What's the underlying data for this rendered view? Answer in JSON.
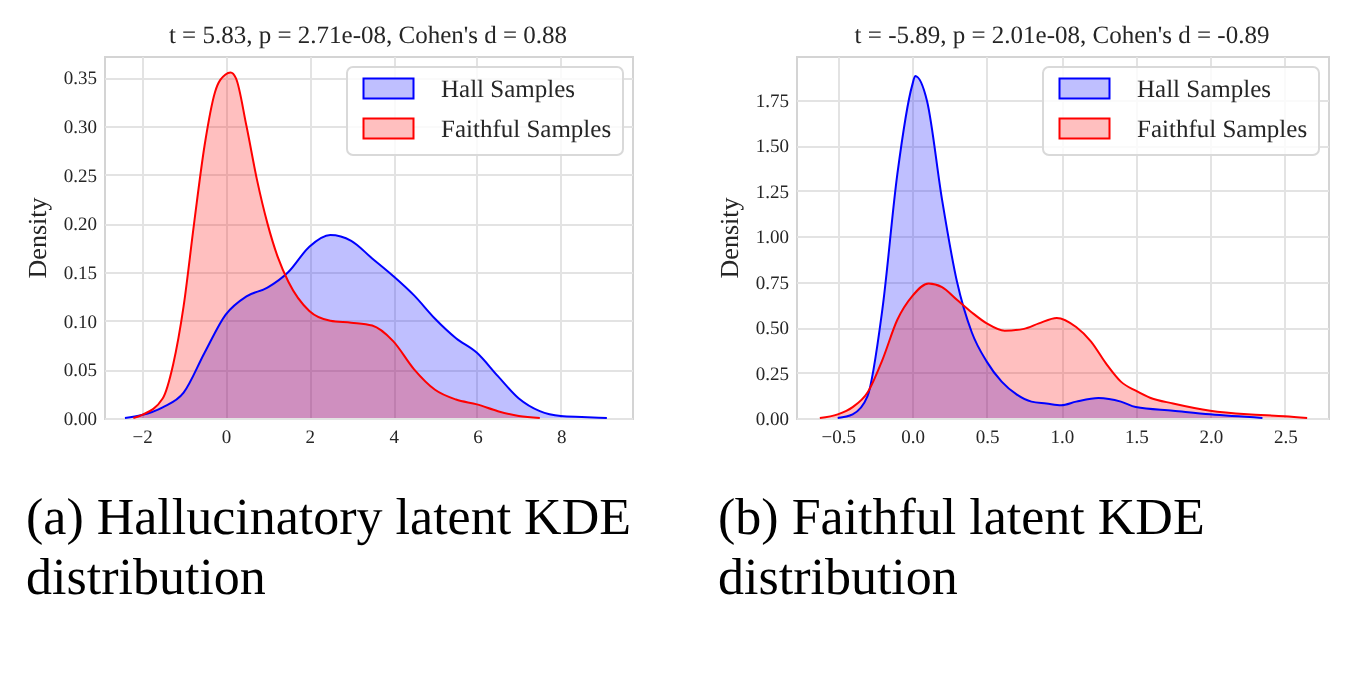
{
  "chart_data": [
    {
      "type": "area",
      "title": "t = 5.83, p = 2.71e-08, Cohen's d = 0.88",
      "ylabel": "Density",
      "annotations": [
        "(a) Hallucinatory latent KDE distribution"
      ],
      "xlim": [
        -2.9,
        9.7
      ],
      "ylim": [
        0,
        0.372
      ],
      "xticks": [
        {
          "value": -2,
          "label": "−2"
        },
        0,
        2,
        4,
        6,
        8
      ],
      "yticks": [
        {
          "value": 0,
          "label": "0.00"
        },
        0.05,
        {
          "value": 0.1,
          "label": "0.10"
        },
        0.15,
        {
          "value": 0.2,
          "label": "0.20"
        },
        0.25,
        {
          "value": 0.3,
          "label": "0.30"
        },
        0.35
      ],
      "grid": true,
      "legend": "top right",
      "series": [
        {
          "name": "Hall Samples",
          "color": "#0000ff",
          "x": [
            -2.4,
            -2,
            -1.5,
            -1,
            -0.5,
            0,
            0.5,
            1,
            1.5,
            2,
            2.5,
            3,
            3.5,
            4,
            4.5,
            5,
            5.5,
            6,
            6.5,
            7,
            7.5,
            8,
            8.5,
            9.1
          ],
          "values": [
            0,
            0.003,
            0.011,
            0.026,
            0.067,
            0.106,
            0.125,
            0.134,
            0.15,
            0.176,
            0.188,
            0.182,
            0.164,
            0.146,
            0.126,
            0.102,
            0.082,
            0.067,
            0.043,
            0.02,
            0.007,
            0.002,
            0.001,
            0
          ]
        },
        {
          "name": "Faithful Samples",
          "color": "#ff0000",
          "x": [
            -2.2,
            -2,
            -1.5,
            -1.25,
            -1,
            -0.75,
            -0.5,
            -0.25,
            0,
            0.12,
            0.25,
            0.5,
            0.75,
            1,
            1.25,
            1.5,
            2,
            2.5,
            3,
            3.5,
            4,
            4.5,
            5,
            5.5,
            6,
            6.5,
            7,
            7.5
          ],
          "values": [
            0,
            0.003,
            0.02,
            0.055,
            0.115,
            0.2,
            0.28,
            0.335,
            0.353,
            0.355,
            0.349,
            0.3,
            0.245,
            0.2,
            0.165,
            0.14,
            0.11,
            0.1,
            0.098,
            0.095,
            0.079,
            0.05,
            0.029,
            0.019,
            0.014,
            0.007,
            0.002,
            0
          ]
        }
      ]
    },
    {
      "type": "area",
      "title": "t = -5.89, p = 2.01e-08, Cohen's d = -0.89",
      "ylabel": "Density",
      "annotations": [
        "(b) Faithful latent KDE distribution"
      ],
      "xlim": [
        -0.78,
        2.79
      ],
      "ylim": [
        0,
        1.99
      ],
      "xticks": [
        {
          "value": -0.5,
          "label": "−0.5"
        },
        {
          "value": 0,
          "label": "0.0"
        },
        0.5,
        {
          "value": 1,
          "label": "1.0"
        },
        1.5,
        {
          "value": 2,
          "label": "2.0"
        },
        2.5
      ],
      "yticks": [
        {
          "value": 0,
          "label": "0.00"
        },
        0.25,
        {
          "value": 0.5,
          "label": "0.50"
        },
        0.75,
        {
          "value": 1,
          "label": "1.00"
        },
        1.25,
        {
          "value": 1.5,
          "label": "1.50"
        },
        1.75
      ],
      "grid": true,
      "legend": "top right",
      "series": [
        {
          "name": "Hall Samples",
          "color": "#0000ff",
          "x": [
            -0.5,
            -0.4,
            -0.3,
            -0.2,
            -0.1,
            0,
            0.02,
            0.1,
            0.2,
            0.3,
            0.4,
            0.5,
            0.6,
            0.7,
            0.8,
            0.9,
            1.0,
            1.1,
            1.25,
            1.4,
            1.5,
            1.75,
            2.0,
            2.35
          ],
          "values": [
            0,
            0.02,
            0.12,
            0.6,
            1.34,
            1.83,
            1.88,
            1.74,
            1.2,
            0.75,
            0.47,
            0.31,
            0.2,
            0.13,
            0.09,
            0.08,
            0.07,
            0.09,
            0.11,
            0.09,
            0.06,
            0.04,
            0.02,
            0
          ]
        },
        {
          "name": "Faithful Samples",
          "color": "#ff0000",
          "x": [
            -0.62,
            -0.5,
            -0.4,
            -0.3,
            -0.2,
            -0.1,
            0,
            0.11,
            0.2,
            0.3,
            0.4,
            0.5,
            0.62,
            0.75,
            0.85,
            0.97,
            1.1,
            1.2,
            1.3,
            1.4,
            1.5,
            1.6,
            1.75,
            2.0,
            2.25,
            2.5,
            2.65
          ],
          "values": [
            0,
            0.02,
            0.06,
            0.14,
            0.32,
            0.54,
            0.67,
            0.74,
            0.72,
            0.65,
            0.58,
            0.52,
            0.48,
            0.49,
            0.52,
            0.55,
            0.5,
            0.42,
            0.3,
            0.2,
            0.15,
            0.11,
            0.08,
            0.04,
            0.02,
            0.01,
            0
          ]
        }
      ]
    }
  ]
}
